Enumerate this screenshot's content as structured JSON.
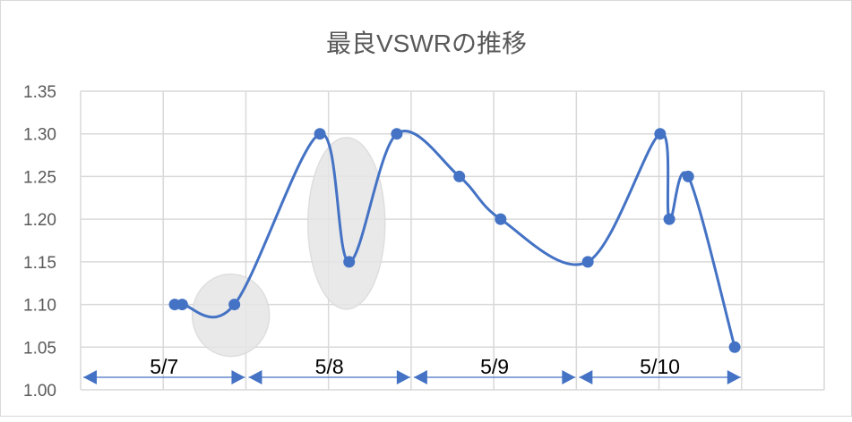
{
  "chart_data": {
    "type": "line",
    "title": "最良VSWRの推移",
    "xlabel": "",
    "ylabel": "",
    "smooth": true,
    "grid": true,
    "legend": "none",
    "ylim": [
      1.0,
      1.35
    ],
    "yticks": [
      "1.00",
      "1.05",
      "1.10",
      "1.15",
      "1.20",
      "1.25",
      "1.30",
      "1.35"
    ],
    "xlim": [
      "5/7 00:00",
      "5/11 12:00"
    ],
    "x_grid_interval_hours": 12,
    "series": [
      {
        "color": "#4472c4",
        "x": [
          "5/7 13:40",
          "5/7 14:45",
          "5/7 22:20",
          "5/8 10:45",
          "5/8 15:00",
          "5/8 21:55",
          "5/9 07:00",
          "5/9 13:00",
          "5/10 01:40",
          "5/10 12:10",
          "5/10 13:30",
          "5/10 16:15",
          "5/10 23:00"
        ],
        "y": [
          1.1,
          1.1,
          1.1,
          1.3,
          1.15,
          1.3,
          1.25,
          1.2,
          1.15,
          1.3,
          1.2,
          1.25,
          1.05
        ]
      }
    ],
    "annotations": {
      "day_ranges": [
        {
          "label": "5/7",
          "from": "5/7 00:00",
          "to": "5/8 00:00"
        },
        {
          "label": "5/8",
          "from": "5/8 00:00",
          "to": "5/9 00:00"
        },
        {
          "label": "5/9",
          "from": "5/9 00:00",
          "to": "5/10 00:00"
        },
        {
          "label": "5/10",
          "from": "5/10 00:00",
          "to": "5/11 00:00"
        }
      ],
      "highlighted_points": [
        2,
        4
      ],
      "arrow_color": "#4472c4",
      "highlight_color": "#e7e6e6"
    }
  }
}
